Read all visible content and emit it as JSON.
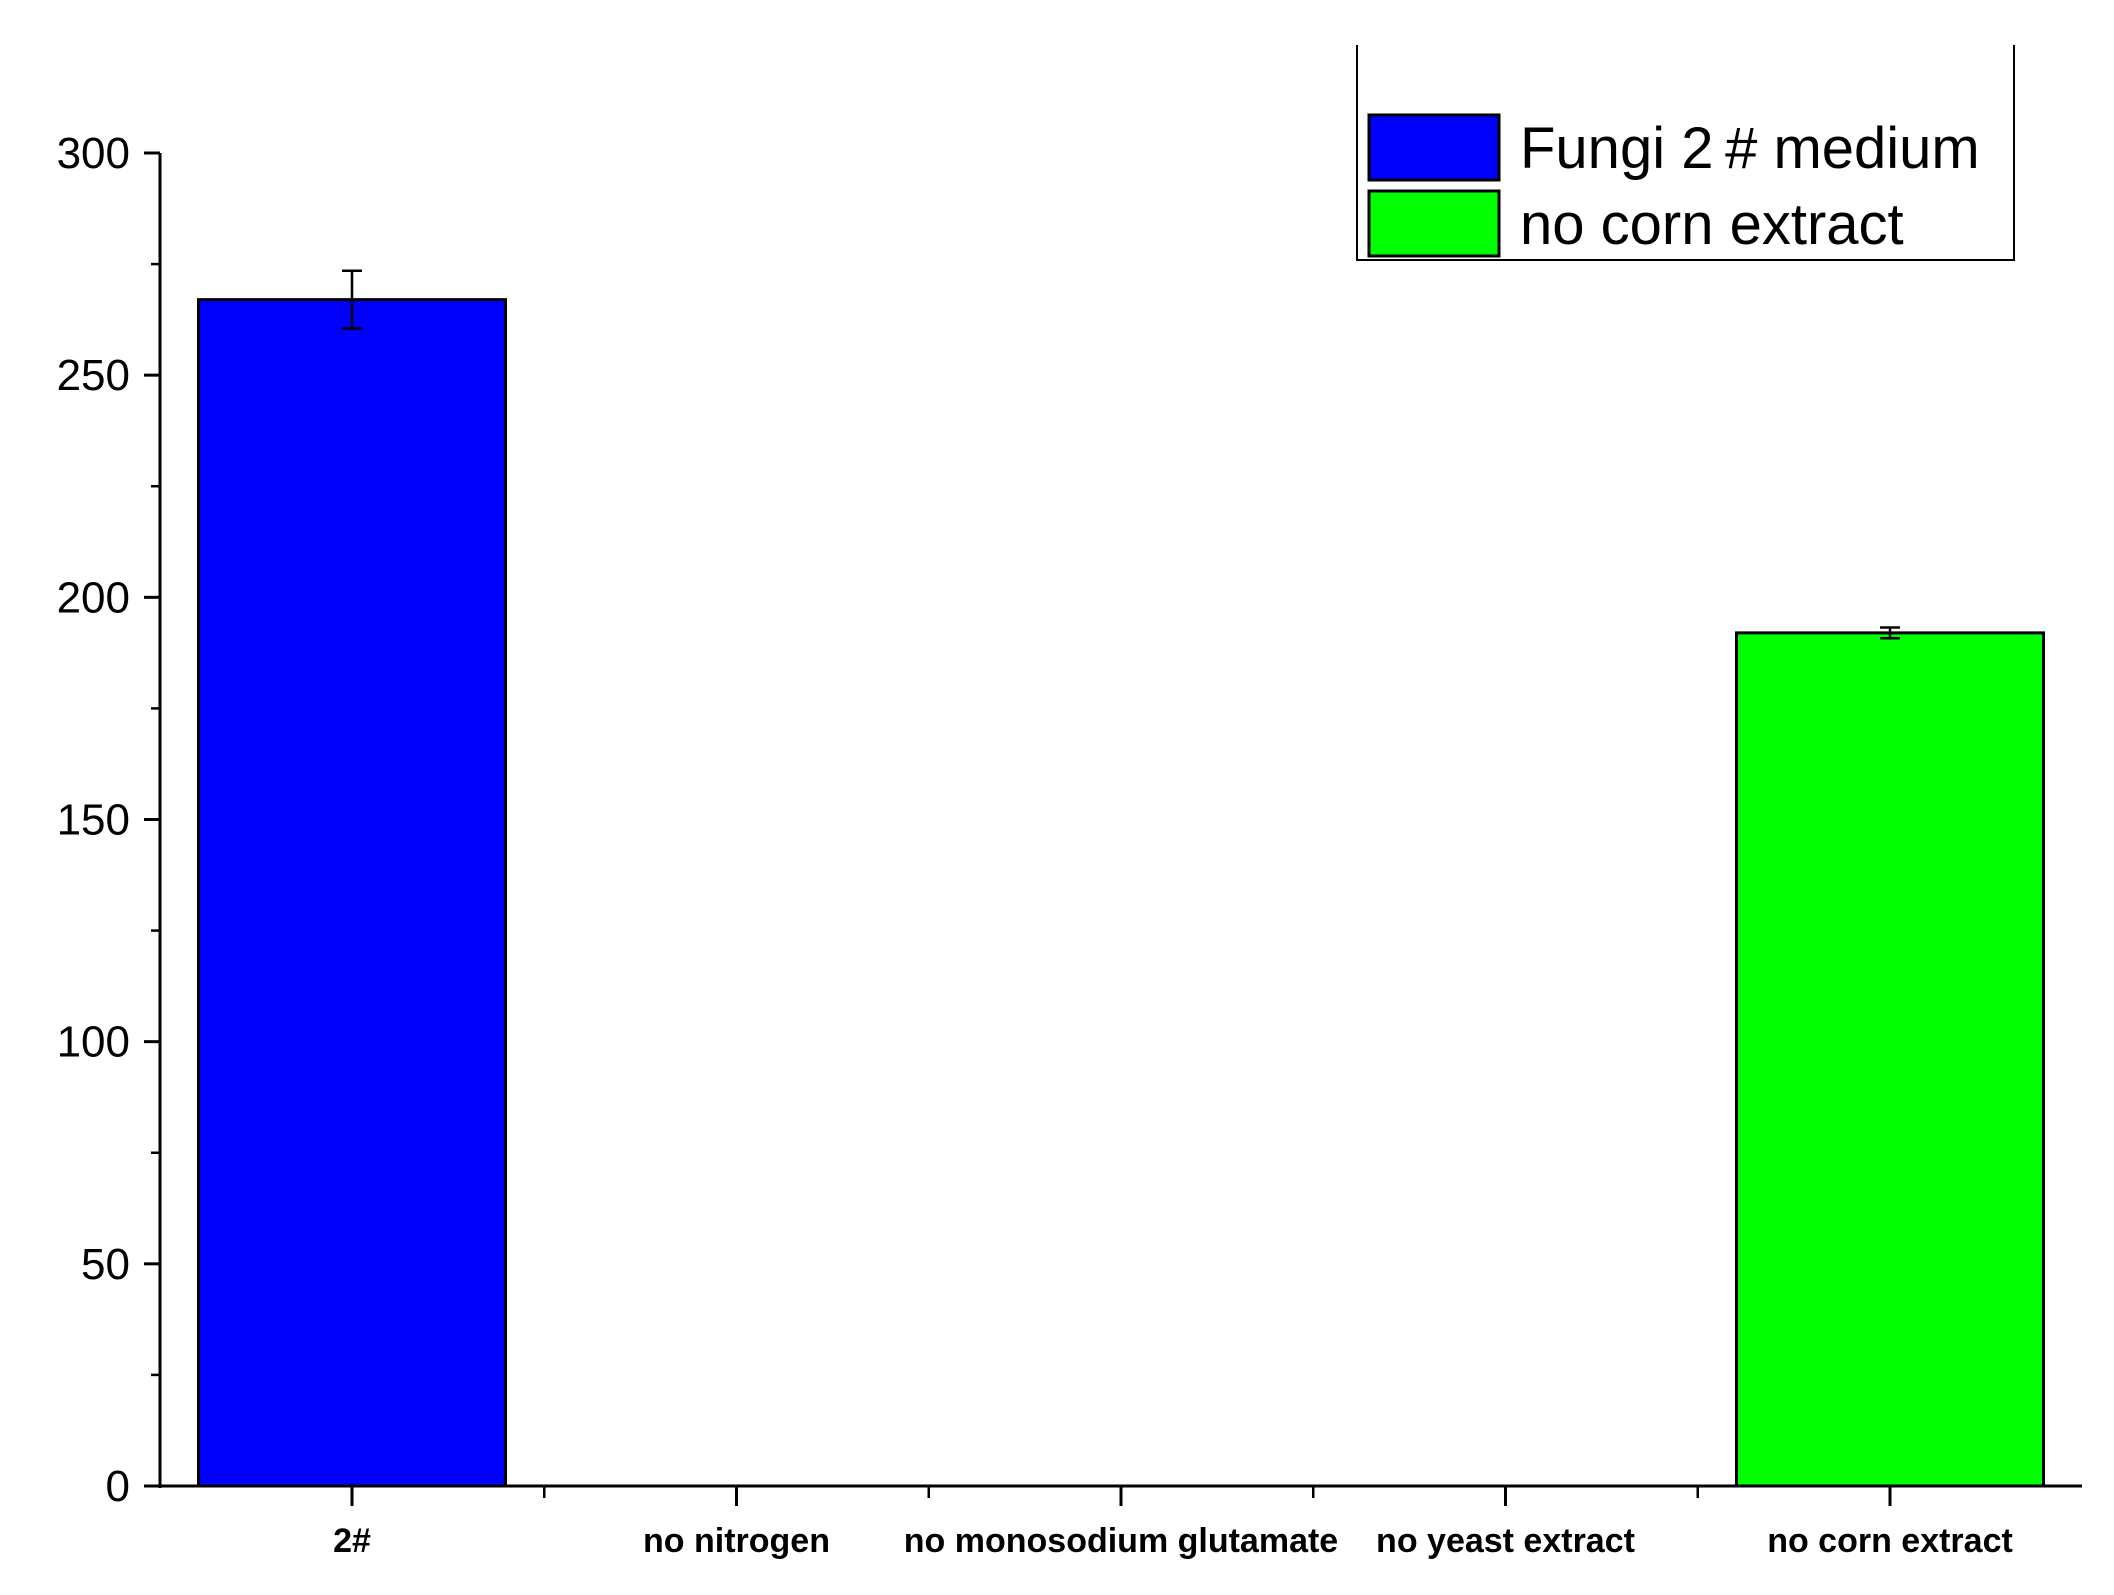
{
  "chart_data": {
    "type": "bar",
    "categories": [
      "2#",
      "no nitrogen",
      "no monosodium glutamate",
      "no yeast extract",
      "no corn extract"
    ],
    "series": [
      {
        "name": "Fungi 2 # medium",
        "color": "#0000ff",
        "values": [
          267,
          null,
          null,
          null,
          null
        ],
        "errors": [
          6.5,
          null,
          null,
          null,
          null
        ]
      },
      {
        "name": "no corn extract",
        "color": "#00ff00",
        "values": [
          null,
          null,
          null,
          null,
          192
        ],
        "errors": [
          null,
          null,
          null,
          null,
          1.2
        ]
      }
    ],
    "y_ticks": [
      "0",
      "50",
      "100",
      "150",
      "200",
      "250",
      "300"
    ],
    "ylim": [
      0,
      300
    ],
    "grid": false,
    "legend_position": "top-right"
  }
}
